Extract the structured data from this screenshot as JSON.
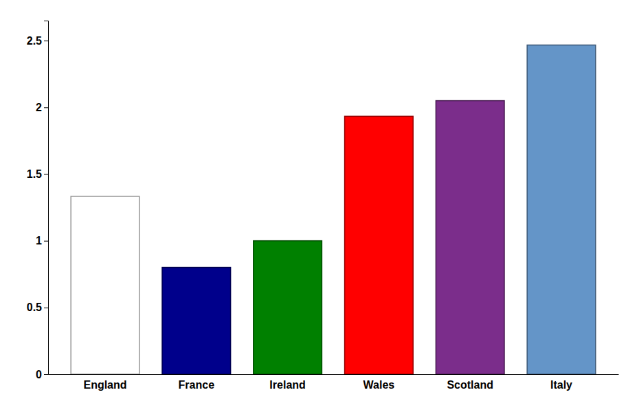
{
  "chart_data": {
    "type": "bar",
    "categories": [
      "England",
      "France",
      "Ireland",
      "Wales",
      "Scotland",
      "Italy"
    ],
    "values": [
      1.333,
      0.8,
      1.0,
      1.933,
      2.05,
      2.467
    ],
    "colors": [
      "#ffffff",
      "#00008B",
      "#008000",
      "#ff0000",
      "#7B2D8B",
      "#6495C8"
    ],
    "ylim": [
      0,
      2.65
    ],
    "yticks": [
      0,
      0.5,
      1,
      1.5,
      2,
      2.5
    ],
    "grid": false
  }
}
